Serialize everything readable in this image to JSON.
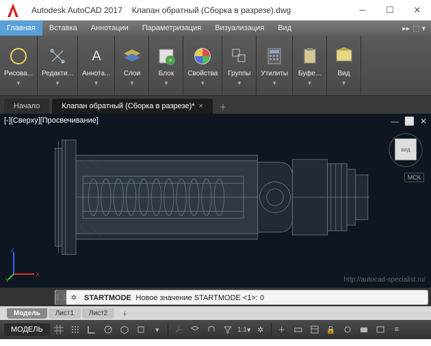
{
  "title": {
    "app": "Autodesk AutoCAD 2017",
    "doc": "Клапан обратный (Сборка в разрезе).dwg"
  },
  "menu": {
    "items": [
      "Главная",
      "Вставка",
      "Аннотации",
      "Параметризация",
      "Визуализация",
      "Вид"
    ],
    "active": 0
  },
  "ribbon": [
    {
      "label": "Рисова...",
      "icon": "draw"
    },
    {
      "label": "Редакти...",
      "icon": "edit"
    },
    {
      "label": "Аннота...",
      "icon": "annotate"
    },
    {
      "label": "Слои",
      "icon": "layers"
    },
    {
      "label": "Блок",
      "icon": "block"
    },
    {
      "label": "Свойства",
      "icon": "properties"
    },
    {
      "label": "Группы",
      "icon": "groups"
    },
    {
      "label": "Утилиты",
      "icon": "utilities"
    },
    {
      "label": "Буфе...",
      "icon": "clipboard"
    },
    {
      "label": "Вид",
      "icon": "view"
    }
  ],
  "tabs": {
    "home": "Начало",
    "doc": "Клапан обратный (Сборка в разрезе)*",
    "active": "doc"
  },
  "viewport": {
    "label": "[-][Сверху][Просвечивание]",
    "mck": "МСК",
    "watermark": "http://autocad-specialist.ru/",
    "axes": [
      "X",
      "Y",
      "Z"
    ],
    "axis_colors": [
      "#e03030",
      "#30d030",
      "#4060ff"
    ]
  },
  "viewcube_label": "вид",
  "cmd": {
    "bold": "STARTMODE",
    "rest": "Новое значение STARTMODE <1>:  0"
  },
  "layouts": {
    "items": [
      "Модель",
      "Лист1",
      "Лист2"
    ],
    "active": 0
  },
  "statusbar": {
    "model": "МОДЕЛЬ",
    "ratio": "1:1"
  },
  "colors": {
    "accent": "#59a0d8",
    "vp_bg": "#0e1621",
    "logo": "#d82323"
  }
}
